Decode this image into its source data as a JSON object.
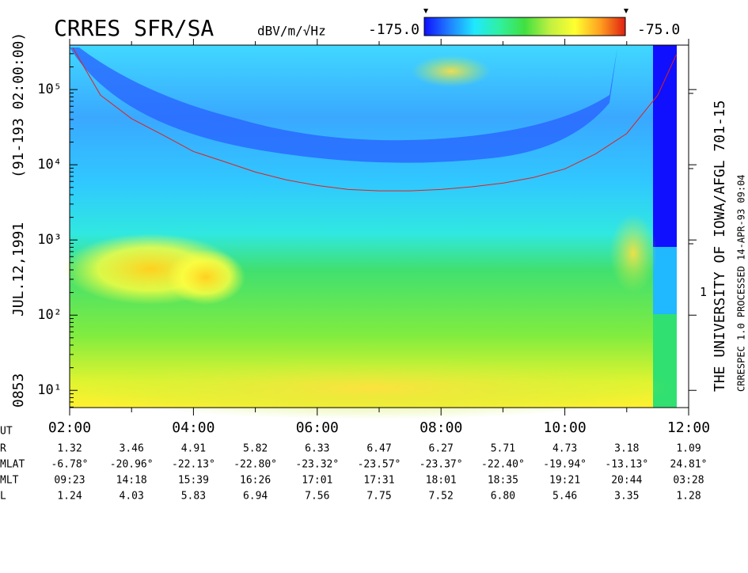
{
  "chart_data": {
    "type": "spectrogram",
    "title": "CRRES SFR/SA",
    "units": "dBV/m/√Hz",
    "colorscale": [
      "#1010ff",
      "#2080ff",
      "#20e8ff",
      "#30f0a0",
      "#40e040",
      "#c0f040",
      "#ffff30",
      "#ffa020",
      "#e02010"
    ],
    "clim": [
      {
        "value": -175,
        "label": "-175.0"
      },
      {
        "value": -75,
        "label": "-75.0"
      }
    ],
    "left_labels": [
      "0853",
      "JUL.12,1991",
      "(91-193 02:00:00)"
    ],
    "right_labels": [
      "THE UNIVERSITY OF IOWA/AFGL 701-15",
      "CRRESPEC 1.0   PROCESSED 14-APR-93  09:04"
    ],
    "right_ticks": [
      {
        "value": 200,
        "label": "1"
      }
    ],
    "log_y": true,
    "xlim": [
      2,
      12
    ],
    "ylim": [
      5.9,
      390000
    ],
    "xticks": [
      {
        "value": 2,
        "label": "02:00"
      },
      {
        "value": 4,
        "label": "04:00"
      },
      {
        "value": 6,
        "label": "06:00"
      },
      {
        "value": 8,
        "label": "08:00"
      },
      {
        "value": 10,
        "label": "10:00"
      },
      {
        "value": 12,
        "label": "12:00"
      }
    ],
    "x_minor_ticks": [
      3,
      5,
      7,
      9,
      11
    ],
    "yticks": [
      {
        "value": 10,
        "label": "10¹"
      },
      {
        "value": 100,
        "label": "10²"
      },
      {
        "value": 1000,
        "label": "10³"
      },
      {
        "value": 10000,
        "label": "10⁴"
      },
      {
        "value": 100000,
        "label": "10⁵"
      }
    ],
    "series": [
      {
        "color": "#e02020",
        "x": [
          2.05,
          2.5,
          3,
          3.5,
          4,
          4.5,
          5,
          5.5,
          6,
          6.5,
          7,
          7.5,
          8,
          8.5,
          9,
          9.5,
          10,
          10.5,
          11,
          11.5,
          11.8
        ],
        "values": [
          360000,
          84000,
          41000,
          25000,
          15000,
          11000,
          8000,
          6300,
          5300,
          4700,
          4500,
          4500,
          4700,
          5100,
          5700,
          6800,
          8800,
          14000,
          26000,
          84000,
          290000
        ]
      }
    ],
    "ephemeris": {
      "x_label": "UT",
      "rows": [
        {
          "name": "R",
          "values": [
            "1.32",
            "3.46",
            "4.91",
            "5.82",
            "6.33",
            "6.47",
            "6.27",
            "5.71",
            "4.73",
            "3.18",
            "1.09"
          ]
        },
        {
          "name": "MLAT",
          "values": [
            "-6.78°",
            "-20.96°",
            "-22.13°",
            "-22.80°",
            "-23.32°",
            "-23.57°",
            "-23.37°",
            "-22.40°",
            "-19.94°",
            "-13.13°",
            "24.81°"
          ]
        },
        {
          "name": "MLT",
          "values": [
            "09:23",
            "14:18",
            "15:39",
            "16:26",
            "17:01",
            "17:31",
            "18:01",
            "18:35",
            "19:21",
            "20:44",
            "03:28"
          ]
        },
        {
          "name": "L",
          "values": [
            "1.24",
            "4.03",
            "5.83",
            "6.94",
            "7.56",
            "7.75",
            "7.52",
            "6.80",
            "5.46",
            "3.35",
            "1.28"
          ]
        }
      ]
    }
  }
}
